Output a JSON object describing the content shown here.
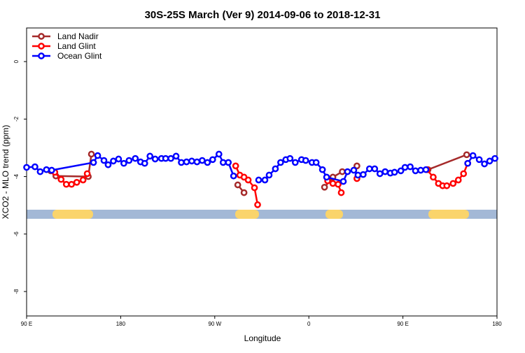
{
  "chart_data": {
    "type": "line",
    "title": "30S-25S March (Ver 9)   2014-09-06 to 2018-12-31",
    "x_label": "Longitude",
    "y_label": "XCO2 - MLO trend (ppm)",
    "xlim": [
      90,
      540
    ],
    "ylim": [
      -8.85,
      1.17
    ],
    "xticks": [
      {
        "value": 90,
        "label": "90 E"
      },
      180,
      {
        "value": 270,
        "label": "90 W"
      },
      {
        "value": 360,
        "label": "0"
      },
      {
        "value": 450,
        "label": "90 E"
      },
      {
        "value": 540,
        "label": "180"
      }
    ],
    "yticks": [
      0,
      -2,
      -4,
      -6,
      -8
    ],
    "legend": "top-left",
    "series": [
      {
        "name": "Land Nadir",
        "color": "#a52a2a",
        "x": [
          113,
          118,
          149,
          152,
          null,
          292,
          298,
          null,
          375,
          383,
          392,
          null,
          406,
          null,
          474,
          511
        ],
        "values": [
          -3.8,
          -3.98,
          -4.0,
          -3.22,
          null,
          -4.29,
          -4.56,
          null,
          -4.37,
          -4.02,
          -3.83,
          null,
          -3.63,
          null,
          -3.76,
          -3.24
        ]
      },
      {
        "name": "Land Glint",
        "color": "#ff0000",
        "x": [
          117,
          123,
          128,
          133,
          138,
          144,
          148,
          null,
          290,
          294,
          298,
          302,
          308,
          311,
          null,
          378,
          383,
          388,
          391,
          null,
          406,
          null,
          473,
          479,
          484,
          488,
          492,
          498,
          503,
          508,
          512
        ],
        "values": [
          -3.85,
          -4.1,
          -4.27,
          -4.27,
          -4.2,
          -4.12,
          -3.9,
          null,
          -3.63,
          -3.95,
          -4.02,
          -4.12,
          -4.39,
          -4.98,
          null,
          -4.15,
          -4.24,
          -4.27,
          -4.56,
          null,
          -4.07,
          null,
          -3.76,
          -4.02,
          -4.24,
          -4.32,
          -4.32,
          -4.24,
          -4.12,
          -3.9,
          -3.54
        ]
      },
      {
        "name": "Ocean Glint",
        "color": "#0000ff",
        "x": [
          90,
          98,
          103,
          109,
          114,
          154,
          158,
          164,
          168,
          173,
          178,
          183,
          188,
          194,
          199,
          203,
          208,
          213,
          219,
          223,
          228,
          233,
          238,
          243,
          248,
          253,
          258,
          263,
          268,
          274,
          278,
          283,
          288,
          null,
          312,
          318,
          322,
          328,
          333,
          338,
          342,
          347,
          353,
          357,
          363,
          367,
          373,
          377,
          393,
          397,
          403,
          407,
          412,
          418,
          423,
          428,
          433,
          438,
          442,
          448,
          452,
          457,
          462,
          467,
          472,
          null,
          512,
          517,
          523,
          528,
          533,
          538
        ],
        "values": [
          -3.68,
          -3.66,
          -3.83,
          -3.76,
          -3.78,
          -3.51,
          -3.27,
          -3.44,
          -3.59,
          -3.46,
          -3.39,
          -3.54,
          -3.44,
          -3.37,
          -3.49,
          -3.54,
          -3.29,
          -3.39,
          -3.37,
          -3.37,
          -3.37,
          -3.29,
          -3.51,
          -3.49,
          -3.46,
          -3.49,
          -3.44,
          -3.51,
          -3.41,
          -3.22,
          -3.51,
          -3.51,
          -3.98,
          null,
          -4.12,
          -4.12,
          -3.95,
          -3.73,
          -3.51,
          -3.41,
          -3.37,
          -3.51,
          -3.41,
          -3.44,
          -3.51,
          -3.51,
          -3.76,
          -4.02,
          -4.17,
          -3.83,
          -3.78,
          -3.95,
          -3.93,
          -3.73,
          -3.73,
          -3.9,
          -3.83,
          -3.88,
          -3.85,
          -3.8,
          -3.68,
          -3.66,
          -3.8,
          -3.78,
          -3.76,
          null,
          -3.54,
          -3.27,
          -3.41,
          -3.56,
          -3.46,
          -3.37
        ]
      }
    ]
  }
}
